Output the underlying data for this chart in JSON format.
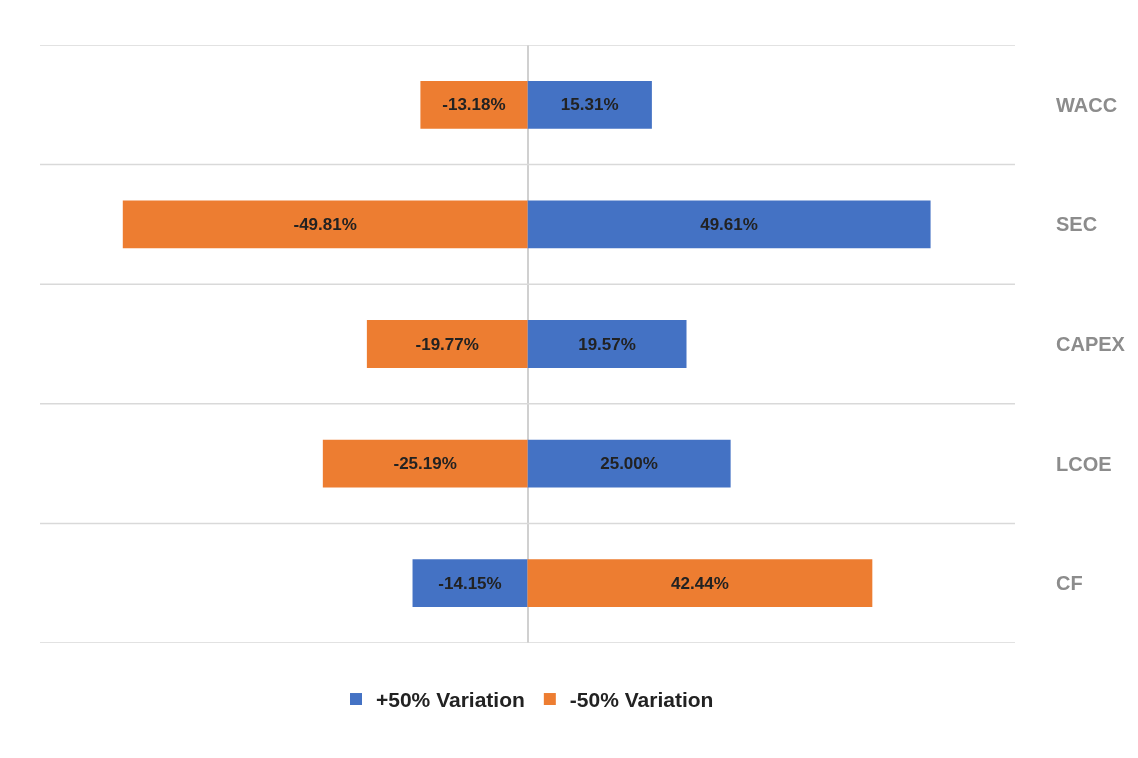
{
  "chart_data": {
    "type": "bar",
    "orientation": "horizontal",
    "categories": [
      "WACC",
      "SEC",
      "CAPEX",
      "LCOE",
      "CF"
    ],
    "series": [
      {
        "name": "+50% Variation",
        "color": "#4472c4",
        "values": [
          15.31,
          49.61,
          19.57,
          25.0,
          -14.15
        ],
        "value_labels": [
          "15.31%",
          "49.61%",
          "19.57%",
          "25.00%",
          "-14.15%"
        ]
      },
      {
        "name": "-50% Variation",
        "color": "#ed7d31",
        "values": [
          -13.18,
          -49.81,
          -19.77,
          -25.19,
          42.44
        ],
        "value_labels": [
          "-13.18%",
          "-49.81%",
          "-19.77%",
          "-25.19%",
          "42.44%"
        ]
      }
    ],
    "stacked": true,
    "xlim": [
      -60,
      60
    ],
    "tick_labels": "y",
    "grid": "y",
    "legend": "bottom"
  }
}
